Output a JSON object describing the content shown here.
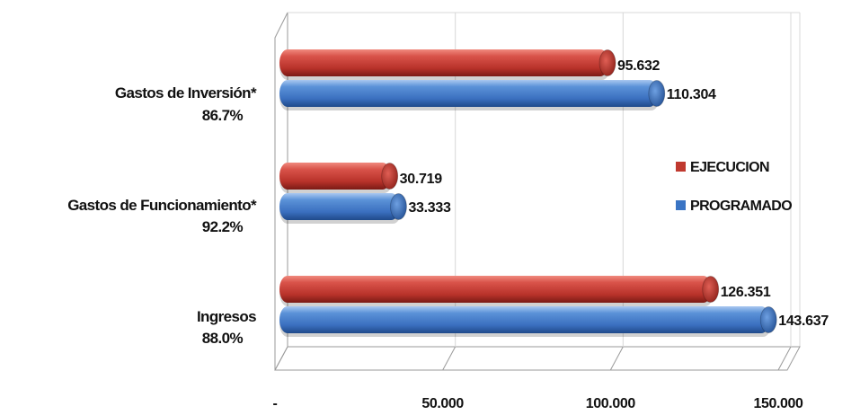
{
  "chart_data": {
    "type": "bar",
    "orientation": "horizontal",
    "three_d": true,
    "categories": [
      "Gastos de Inversión*",
      "Gastos de Funcionamiento*",
      "Ingresos"
    ],
    "category_percentages": [
      "86.7%",
      "92.2%",
      "88.0%"
    ],
    "series": [
      {
        "name": "EJECUCION",
        "color": "#c0392f",
        "values": [
          95632,
          30719,
          126351
        ],
        "value_labels": [
          "95.632",
          "30.719",
          "126.351"
        ]
      },
      {
        "name": "PROGRAMADO",
        "color": "#3a74c4",
        "values": [
          110304,
          33333,
          143637
        ],
        "value_labels": [
          "110.304",
          "33.333",
          "143.637"
        ]
      }
    ],
    "xlim": [
      0,
      150000
    ],
    "x_ticks": [
      0,
      50000,
      100000,
      150000
    ],
    "x_tick_labels": [
      "-",
      "50.000",
      "100.000",
      "150.000"
    ],
    "grid": true,
    "legend_position": "right"
  }
}
